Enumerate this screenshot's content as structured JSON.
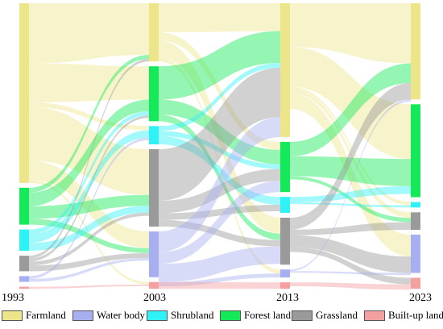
{
  "years": [
    "1993",
    "2003",
    "2013",
    "2023"
  ],
  "land_types": [
    {
      "key": "farmland",
      "label": "Farmland",
      "color": "#ede58a"
    },
    {
      "key": "water",
      "label": "Water body",
      "color": "#a7aff0"
    },
    {
      "key": "shrub",
      "label": "Shrubland",
      "color": "#2ff2f7"
    },
    {
      "key": "forest",
      "label": "Forest land",
      "color": "#14ea59"
    },
    {
      "key": "grass",
      "label": "Grassland",
      "color": "#9a9a9a"
    },
    {
      "key": "builtup",
      "label": "Built-up land",
      "color": "#f4a0a0"
    }
  ],
  "chart_data": {
    "type": "sankey",
    "stages": [
      "1993",
      "2003",
      "2013",
      "2023"
    ],
    "categories": [
      "Farmland",
      "Water body",
      "Shrubland",
      "Forest land",
      "Grassland",
      "Built-up land"
    ],
    "areas": {
      "1993": {
        "Farmland": 185,
        "Forest land": 38,
        "Shrubland": 22,
        "Grassland": 16,
        "Water body": 6,
        "Built-up land": 2
      },
      "2003": {
        "Farmland": 70,
        "Forest land": 66,
        "Shrubland": 22,
        "Grassland": 93,
        "Water body": 55,
        "Built-up land": 8
      },
      "2013": {
        "Farmland": 168,
        "Forest land": 63,
        "Shrubland": 20,
        "Grassland": 59,
        "Water body": 10,
        "Built-up land": 8
      },
      "2023": {
        "Farmland": 88,
        "Forest land": 85,
        "Shrubland": 5,
        "Grassland": 16,
        "Water body": 35,
        "Built-up land": 10
      }
    },
    "flows": [
      [
        {
          "from": "Farmland",
          "to": "Farmland",
          "value": 62
        },
        {
          "from": "Farmland",
          "to": "Forest land",
          "value": 40
        },
        {
          "from": "Farmland",
          "to": "Grassland",
          "value": 55
        },
        {
          "from": "Farmland",
          "to": "Water body",
          "value": 20
        },
        {
          "from": "Farmland",
          "to": "Shrubland",
          "value": 5
        },
        {
          "from": "Farmland",
          "to": "Built-up land",
          "value": 3
        },
        {
          "from": "Forest land",
          "to": "Farmland",
          "value": 5
        },
        {
          "from": "Forest land",
          "to": "Forest land",
          "value": 14
        },
        {
          "from": "Forest land",
          "to": "Grassland",
          "value": 13
        },
        {
          "from": "Forest land",
          "to": "Water body",
          "value": 6
        },
        {
          "from": "Shrubland",
          "to": "Shrubland",
          "value": 9
        },
        {
          "from": "Shrubland",
          "to": "Grassland",
          "value": 8
        },
        {
          "from": "Shrubland",
          "to": "Forest land",
          "value": 5
        },
        {
          "from": "Grassland",
          "to": "Farmland",
          "value": 3
        },
        {
          "from": "Grassland",
          "to": "Forest land",
          "value": 3
        },
        {
          "from": "Grassland",
          "to": "Water body",
          "value": 6
        },
        {
          "from": "Grassland",
          "to": "Grassland",
          "value": 4
        },
        {
          "from": "Water body",
          "to": "Water body",
          "value": 3
        },
        {
          "from": "Water body",
          "to": "Shrubland",
          "value": 3
        },
        {
          "from": "Built-up land",
          "to": "Built-up land",
          "value": 2
        }
      ],
      [
        {
          "from": "Farmland",
          "to": "Farmland",
          "value": 35
        },
        {
          "from": "Farmland",
          "to": "Forest land",
          "value": 10
        },
        {
          "from": "Farmland",
          "to": "Grassland",
          "value": 20
        },
        {
          "from": "Farmland",
          "to": "Water body",
          "value": 5
        },
        {
          "from": "Forest land",
          "to": "Farmland",
          "value": 40
        },
        {
          "from": "Forest land",
          "to": "Forest land",
          "value": 18
        },
        {
          "from": "Forest land",
          "to": "Grassland",
          "value": 8
        },
        {
          "from": "Shrubland",
          "to": "Shrubland",
          "value": 10
        },
        {
          "from": "Shrubland",
          "to": "Farmland",
          "value": 6
        },
        {
          "from": "Shrubland",
          "to": "Forest land",
          "value": 6
        },
        {
          "from": "Grassland",
          "to": "Farmland",
          "value": 62
        },
        {
          "from": "Grassland",
          "to": "Forest land",
          "value": 15
        },
        {
          "from": "Grassland",
          "to": "Shrubland",
          "value": 8
        },
        {
          "from": "Grassland",
          "to": "Grassland",
          "value": 8
        },
        {
          "from": "Water body",
          "to": "Farmland",
          "value": 25
        },
        {
          "from": "Water body",
          "to": "Grassland",
          "value": 22
        },
        {
          "from": "Water body",
          "to": "Forest land",
          "value": 14
        },
        {
          "from": "Water body",
          "to": "Water body",
          "value": 5
        },
        {
          "from": "Built-up land",
          "to": "Built-up land",
          "value": 8
        }
      ],
      [
        {
          "from": "Farmland",
          "to": "Farmland",
          "value": 55
        },
        {
          "from": "Farmland",
          "to": "Forest land",
          "value": 50
        },
        {
          "from": "Farmland",
          "to": "Water body",
          "value": 20
        },
        {
          "from": "Farmland",
          "to": "Grassland",
          "value": 5
        },
        {
          "from": "Farmland",
          "to": "Shrubland",
          "value": 3
        },
        {
          "from": "Forest land",
          "to": "Farmland",
          "value": 18
        },
        {
          "from": "Forest land",
          "to": "Forest land",
          "value": 25
        },
        {
          "from": "Forest land",
          "to": "Grassland",
          "value": 4
        },
        {
          "from": "Shrubland",
          "to": "Forest land",
          "value": 7
        },
        {
          "from": "Shrubland",
          "to": "Shrubland",
          "value": 2
        },
        {
          "from": "Grassland",
          "to": "Farmland",
          "value": 15
        },
        {
          "from": "Grassland",
          "to": "Water body",
          "value": 15
        },
        {
          "from": "Grassland",
          "to": "Built-up land",
          "value": 6
        },
        {
          "from": "Grassland",
          "to": "Grassland",
          "value": 7
        },
        {
          "from": "Water body",
          "to": "Water body",
          "value": 2
        },
        {
          "from": "Water body",
          "to": "Farmland",
          "value": 2
        },
        {
          "from": "Built-up land",
          "to": "Built-up land",
          "value": 5
        }
      ]
    ],
    "legend": "bottom"
  }
}
